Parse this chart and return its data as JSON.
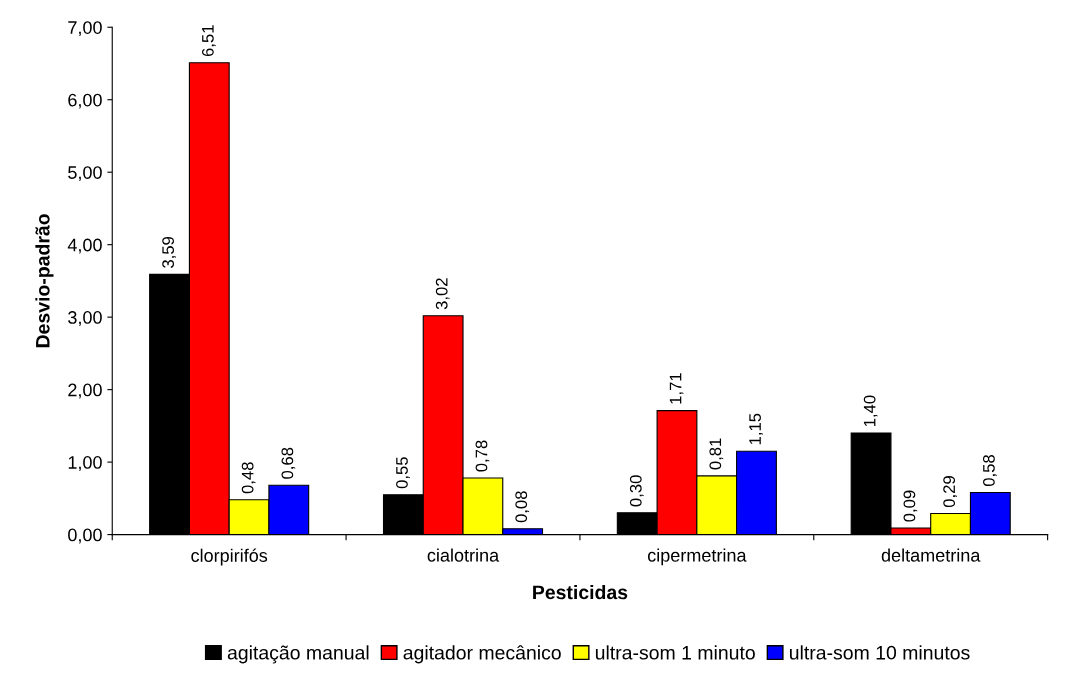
{
  "chart_data": {
    "type": "bar",
    "xlabel": "Pesticidas",
    "ylabel": "Desvio-padrão",
    "categories": [
      "clorpirifós",
      "cialotrina",
      "cipermetrina",
      "deltametrina"
    ],
    "series": [
      {
        "name": "agitação manual",
        "color": "#000000",
        "values": [
          3.59,
          0.55,
          0.3,
          1.4
        ],
        "value_labels": [
          "3,59",
          "0,55",
          "0,30",
          "1,40"
        ]
      },
      {
        "name": "agitador mecânico",
        "color": "#ff0000",
        "values": [
          6.51,
          3.02,
          1.71,
          0.09
        ],
        "value_labels": [
          "6,51",
          "3,02",
          "1,71",
          "0,09"
        ]
      },
      {
        "name": "ultra-som 1 minuto",
        "color": "#ffff00",
        "values": [
          0.48,
          0.78,
          0.81,
          0.29
        ],
        "value_labels": [
          "0,48",
          "0,78",
          "0,81",
          "0,29"
        ]
      },
      {
        "name": "ultra-som 10 minutos",
        "color": "#0000ff",
        "values": [
          0.68,
          0.08,
          1.15,
          0.58
        ],
        "value_labels": [
          "0,68",
          "0,08",
          "1,15",
          "0,58"
        ]
      }
    ],
    "ylim": [
      0,
      7
    ],
    "yticks": [
      {
        "value": 0,
        "label": "0,00"
      },
      {
        "value": 1,
        "label": "1,00"
      },
      {
        "value": 2,
        "label": "2,00"
      },
      {
        "value": 3,
        "label": "3,00"
      },
      {
        "value": 4,
        "label": "4,00"
      },
      {
        "value": 5,
        "label": "5,00"
      },
      {
        "value": 6,
        "label": "6,00"
      },
      {
        "value": 7,
        "label": "7,00"
      }
    ],
    "grid": false,
    "legend": "bottom"
  }
}
